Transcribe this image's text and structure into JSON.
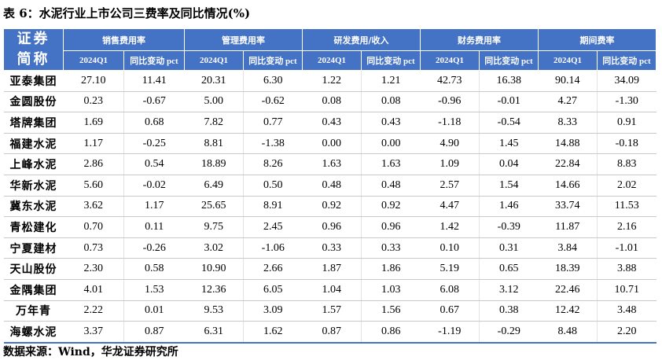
{
  "title": "表 6：水泥行业上市公司三费率及同比情况(%)",
  "header": {
    "name_label": "证券\n简称",
    "groups": [
      "销售费用率",
      "管理费用率",
      "研发费用/收入",
      "财务费用率",
      "期间费率"
    ],
    "sub": [
      "2024Q1",
      "同比变动 pct"
    ]
  },
  "rows": [
    {
      "name": "亚泰集团",
      "vals": [
        "27.10",
        "11.41",
        "20.31",
        "6.30",
        "1.22",
        "1.21",
        "42.73",
        "16.38",
        "90.14",
        "34.09"
      ]
    },
    {
      "name": "金圆股份",
      "vals": [
        "0.23",
        "-0.67",
        "5.00",
        "-0.62",
        "0.08",
        "0.08",
        "-0.96",
        "-0.01",
        "4.27",
        "-1.30"
      ]
    },
    {
      "name": "塔牌集团",
      "vals": [
        "1.69",
        "0.68",
        "7.82",
        "0.77",
        "0.43",
        "0.43",
        "-1.18",
        "-0.54",
        "8.33",
        "0.91"
      ]
    },
    {
      "name": "福建水泥",
      "vals": [
        "1.17",
        "-0.25",
        "8.81",
        "-1.38",
        "0.00",
        "0.00",
        "4.90",
        "1.45",
        "14.88",
        "-0.18"
      ]
    },
    {
      "name": "上峰水泥",
      "vals": [
        "2.86",
        "0.54",
        "18.89",
        "8.26",
        "1.63",
        "1.63",
        "1.09",
        "0.04",
        "22.84",
        "8.83"
      ]
    },
    {
      "name": "华新水泥",
      "vals": [
        "5.60",
        "-0.02",
        "6.49",
        "0.50",
        "0.48",
        "0.48",
        "2.57",
        "1.54",
        "14.66",
        "2.02"
      ]
    },
    {
      "name": "冀东水泥",
      "vals": [
        "3.62",
        "1.17",
        "25.65",
        "8.91",
        "0.92",
        "0.92",
        "4.47",
        "1.46",
        "33.74",
        "11.53"
      ]
    },
    {
      "name": "青松建化",
      "vals": [
        "0.70",
        "0.11",
        "9.75",
        "2.45",
        "0.96",
        "0.96",
        "1.42",
        "-0.39",
        "11.87",
        "2.16"
      ]
    },
    {
      "name": "宁夏建材",
      "vals": [
        "0.73",
        "-0.26",
        "3.02",
        "-1.06",
        "0.33",
        "0.33",
        "0.10",
        "0.31",
        "3.84",
        "-1.01"
      ]
    },
    {
      "name": "天山股份",
      "vals": [
        "2.30",
        "0.58",
        "10.90",
        "2.66",
        "1.87",
        "1.86",
        "5.19",
        "0.65",
        "18.39",
        "3.88"
      ]
    },
    {
      "name": "金隅集团",
      "vals": [
        "4.01",
        "1.53",
        "12.36",
        "6.05",
        "1.04",
        "1.03",
        "6.08",
        "3.12",
        "22.46",
        "10.71"
      ]
    },
    {
      "name": "万年青",
      "vals": [
        "2.22",
        "0.01",
        "9.53",
        "3.09",
        "1.57",
        "1.56",
        "0.67",
        "0.38",
        "12.42",
        "3.48"
      ]
    },
    {
      "name": "海螺水泥",
      "vals": [
        "3.37",
        "0.87",
        "6.31",
        "1.62",
        "0.87",
        "0.86",
        "-1.19",
        "-0.29",
        "8.48",
        "2.20"
      ]
    }
  ],
  "source": "数据来源：Wind，华龙证券研究所"
}
